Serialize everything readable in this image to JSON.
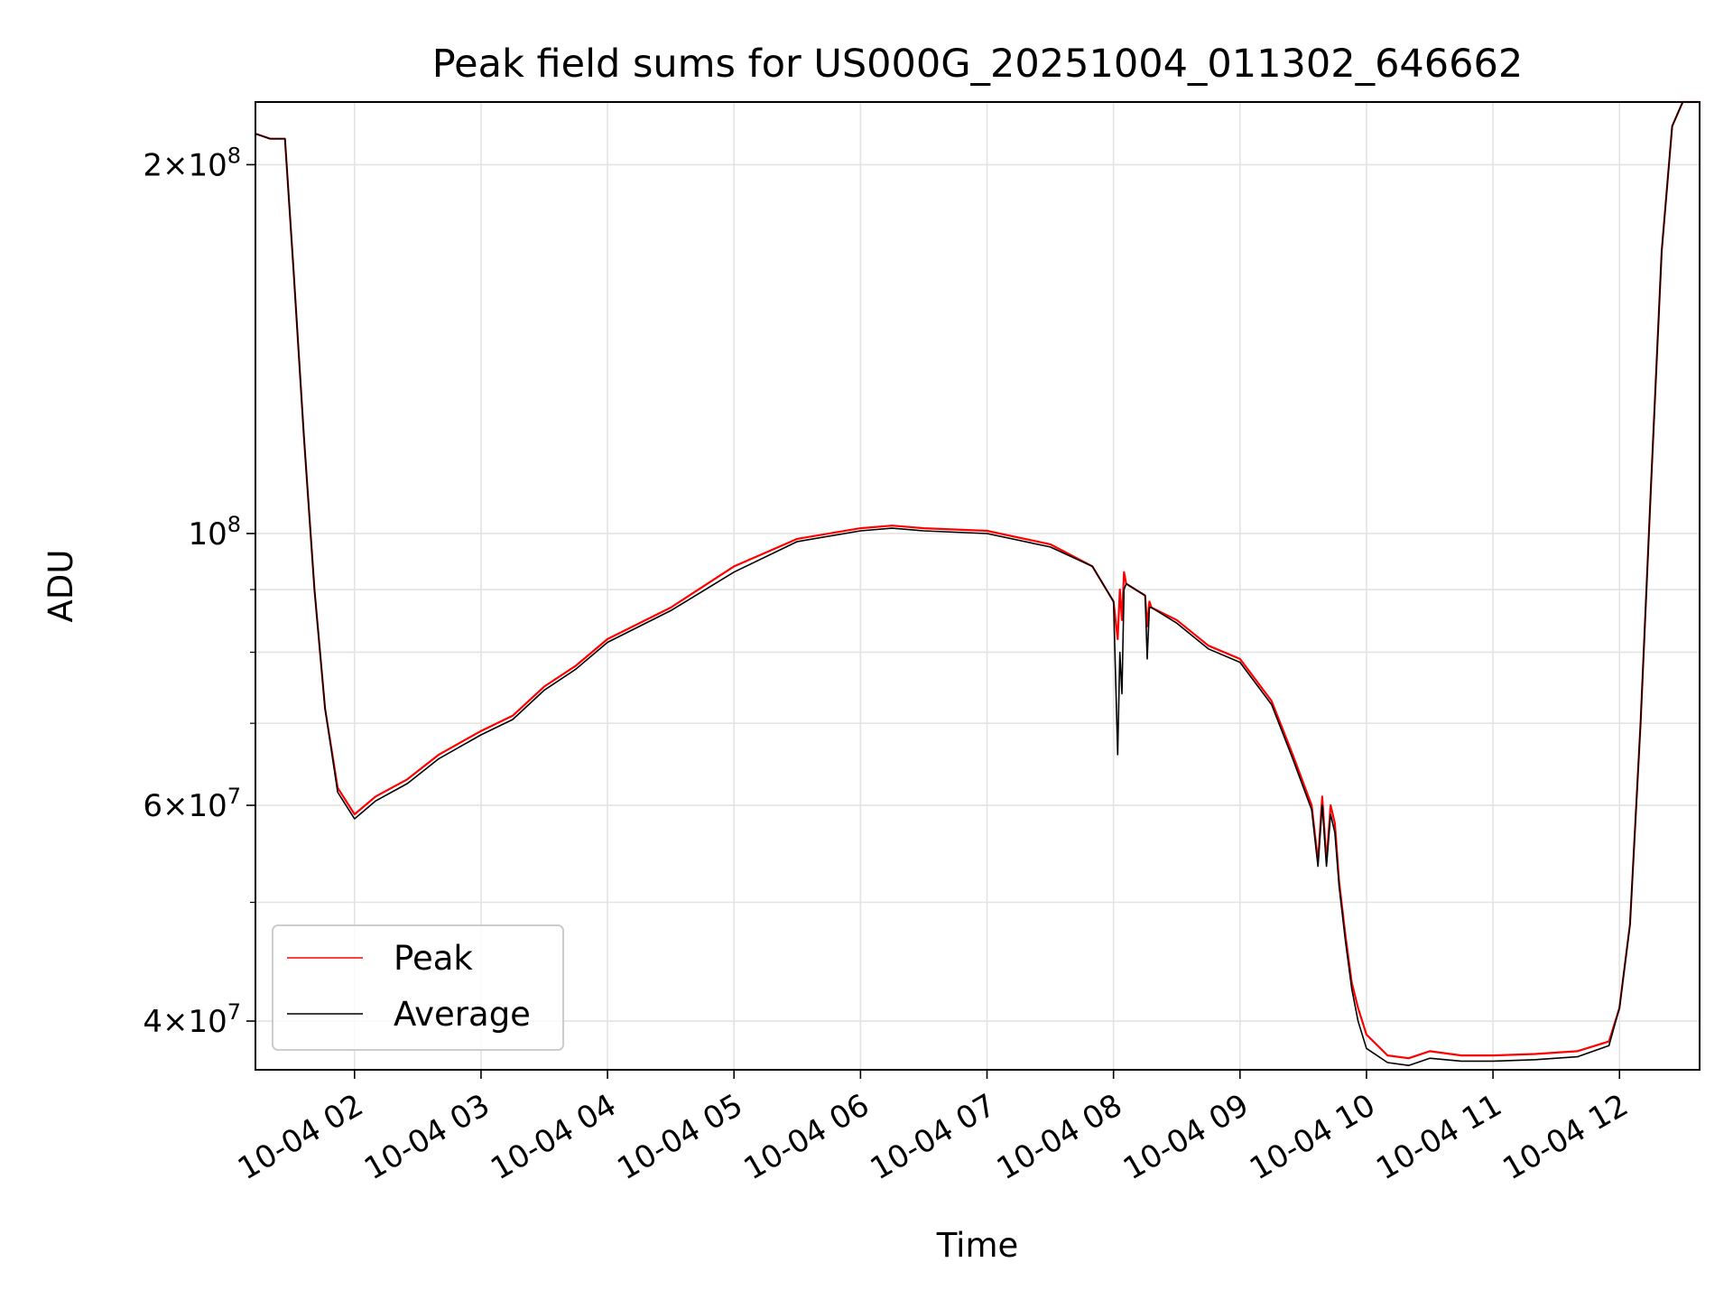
{
  "chart_data": {
    "type": "line",
    "title": "Peak field sums for US000G_20251004_011302_646662",
    "xlabel": "Time",
    "ylabel": "ADU",
    "y_scale": "log",
    "x_range": [
      "2025-10-04 01:13",
      "2025-10-04 12:38"
    ],
    "ylim": [
      36500000,
      225000000
    ],
    "grid": true,
    "legend_position": "lower-left",
    "x_ticks": [
      {
        "value": "2025-10-04 02:00",
        "label": "10-04 02"
      },
      {
        "value": "2025-10-04 03:00",
        "label": "10-04 03"
      },
      {
        "value": "2025-10-04 04:00",
        "label": "10-04 04"
      },
      {
        "value": "2025-10-04 05:00",
        "label": "10-04 05"
      },
      {
        "value": "2025-10-04 06:00",
        "label": "10-04 06"
      },
      {
        "value": "2025-10-04 07:00",
        "label": "10-04 07"
      },
      {
        "value": "2025-10-04 08:00",
        "label": "10-04 08"
      },
      {
        "value": "2025-10-04 09:00",
        "label": "10-04 09"
      },
      {
        "value": "2025-10-04 10:00",
        "label": "10-04 10"
      },
      {
        "value": "2025-10-04 11:00",
        "label": "10-04 11"
      },
      {
        "value": "2025-10-04 12:00",
        "label": "10-04 12"
      }
    ],
    "y_ticks": [
      {
        "value": 200000000,
        "mant": "2",
        "exp": "8"
      },
      {
        "value": 100000000,
        "mant": "",
        "exp": "8"
      },
      {
        "value": 60000000,
        "mant": "6",
        "exp": "7"
      },
      {
        "value": 40000000,
        "mant": "4",
        "exp": "7"
      }
    ],
    "y_minor_ticks": [
      50000000,
      70000000,
      80000000,
      90000000
    ],
    "series": [
      {
        "name": "Peak",
        "color": "#ff0000",
        "x": [
          "2025-10-04 01:13",
          "2025-10-04 01:20",
          "2025-10-04 01:27",
          "2025-10-04 01:31",
          "2025-10-04 01:36",
          "2025-10-04 01:41",
          "2025-10-04 01:46",
          "2025-10-04 01:52",
          "2025-10-04 02:00",
          "2025-10-04 02:10",
          "2025-10-04 02:25",
          "2025-10-04 02:40",
          "2025-10-04 03:00",
          "2025-10-04 03:15",
          "2025-10-04 03:30",
          "2025-10-04 03:45",
          "2025-10-04 04:00",
          "2025-10-04 04:30",
          "2025-10-04 05:00",
          "2025-10-04 05:30",
          "2025-10-04 06:00",
          "2025-10-04 06:15",
          "2025-10-04 06:30",
          "2025-10-04 07:00",
          "2025-10-04 07:30",
          "2025-10-04 07:50",
          "2025-10-04 08:00",
          "2025-10-04 08:02",
          "2025-10-04 08:03",
          "2025-10-04 08:04",
          "2025-10-04 08:05",
          "2025-10-04 08:06",
          "2025-10-04 08:15",
          "2025-10-04 08:16",
          "2025-10-04 08:17",
          "2025-10-04 08:18",
          "2025-10-04 08:30",
          "2025-10-04 08:45",
          "2025-10-04 09:00",
          "2025-10-04 09:15",
          "2025-10-04 09:25",
          "2025-10-04 09:34",
          "2025-10-04 09:37",
          "2025-10-04 09:39",
          "2025-10-04 09:41",
          "2025-10-04 09:43",
          "2025-10-04 09:45",
          "2025-10-04 09:47",
          "2025-10-04 09:50",
          "2025-10-04 09:53",
          "2025-10-04 09:56",
          "2025-10-04 10:00",
          "2025-10-04 10:10",
          "2025-10-04 10:20",
          "2025-10-04 10:30",
          "2025-10-04 10:45",
          "2025-10-04 11:00",
          "2025-10-04 11:20",
          "2025-10-04 11:40",
          "2025-10-04 11:55",
          "2025-10-04 12:00",
          "2025-10-04 12:05",
          "2025-10-04 12:10",
          "2025-10-04 12:15",
          "2025-10-04 12:20",
          "2025-10-04 12:25",
          "2025-10-04 12:30",
          "2025-10-04 12:38"
        ],
        "values": [
          212000000,
          210000000,
          210000000,
          165000000,
          120000000,
          90000000,
          72000000,
          62000000,
          59000000,
          61000000,
          63000000,
          66000000,
          69000000,
          71000000,
          75000000,
          78000000,
          82000000,
          87000000,
          94000000,
          99000000,
          101000000,
          101500000,
          101000000,
          100500000,
          98000000,
          94000000,
          88000000,
          82000000,
          90000000,
          85000000,
          93000000,
          91000000,
          89000000,
          84000000,
          88000000,
          87000000,
          85000000,
          81000000,
          79000000,
          73000000,
          66000000,
          60000000,
          54000000,
          61000000,
          54000000,
          60000000,
          58000000,
          52000000,
          47000000,
          43000000,
          41000000,
          39000000,
          37500000,
          37300000,
          37800000,
          37500000,
          37500000,
          37600000,
          37800000,
          38500000,
          41000000,
          48000000,
          70000000,
          110000000,
          170000000,
          215000000,
          225000000,
          225000000
        ]
      },
      {
        "name": "Average",
        "color": "#000000",
        "x": [
          "2025-10-04 01:13",
          "2025-10-04 01:20",
          "2025-10-04 01:27",
          "2025-10-04 01:31",
          "2025-10-04 01:36",
          "2025-10-04 01:41",
          "2025-10-04 01:46",
          "2025-10-04 01:52",
          "2025-10-04 02:00",
          "2025-10-04 02:10",
          "2025-10-04 02:25",
          "2025-10-04 02:40",
          "2025-10-04 03:00",
          "2025-10-04 03:15",
          "2025-10-04 03:30",
          "2025-10-04 03:45",
          "2025-10-04 04:00",
          "2025-10-04 04:30",
          "2025-10-04 05:00",
          "2025-10-04 05:30",
          "2025-10-04 06:00",
          "2025-10-04 06:15",
          "2025-10-04 06:30",
          "2025-10-04 07:00",
          "2025-10-04 07:30",
          "2025-10-04 07:50",
          "2025-10-04 08:00",
          "2025-10-04 08:02",
          "2025-10-04 08:03",
          "2025-10-04 08:04",
          "2025-10-04 08:05",
          "2025-10-04 08:06",
          "2025-10-04 08:15",
          "2025-10-04 08:16",
          "2025-10-04 08:17",
          "2025-10-04 08:18",
          "2025-10-04 08:30",
          "2025-10-04 08:45",
          "2025-10-04 09:00",
          "2025-10-04 09:15",
          "2025-10-04 09:25",
          "2025-10-04 09:34",
          "2025-10-04 09:37",
          "2025-10-04 09:39",
          "2025-10-04 09:41",
          "2025-10-04 09:43",
          "2025-10-04 09:45",
          "2025-10-04 09:47",
          "2025-10-04 09:50",
          "2025-10-04 09:53",
          "2025-10-04 09:56",
          "2025-10-04 10:00",
          "2025-10-04 10:10",
          "2025-10-04 10:20",
          "2025-10-04 10:30",
          "2025-10-04 10:45",
          "2025-10-04 11:00",
          "2025-10-04 11:20",
          "2025-10-04 11:40",
          "2025-10-04 11:55",
          "2025-10-04 12:00",
          "2025-10-04 12:05",
          "2025-10-04 12:10",
          "2025-10-04 12:15",
          "2025-10-04 12:20",
          "2025-10-04 12:25",
          "2025-10-04 12:30",
          "2025-10-04 12:38"
        ],
        "values": [
          212000000,
          210000000,
          210000000,
          165000000,
          120000000,
          90000000,
          72000000,
          61500000,
          58500000,
          60500000,
          62500000,
          65500000,
          68500000,
          70500000,
          74500000,
          77500000,
          81500000,
          86500000,
          93000000,
          98500000,
          100500000,
          101000000,
          100500000,
          100000000,
          97500000,
          94000000,
          88000000,
          66000000,
          80000000,
          74000000,
          90000000,
          91000000,
          89000000,
          79000000,
          87000000,
          87000000,
          84500000,
          80500000,
          78500000,
          72500000,
          65500000,
          59500000,
          53500000,
          60000000,
          53500000,
          59000000,
          57000000,
          51500000,
          46500000,
          42500000,
          40000000,
          38000000,
          37000000,
          36800000,
          37300000,
          37100000,
          37100000,
          37200000,
          37400000,
          38200000,
          41000000,
          48000000,
          70000000,
          110000000,
          170000000,
          215000000,
          225000000,
          225000000
        ]
      }
    ]
  }
}
